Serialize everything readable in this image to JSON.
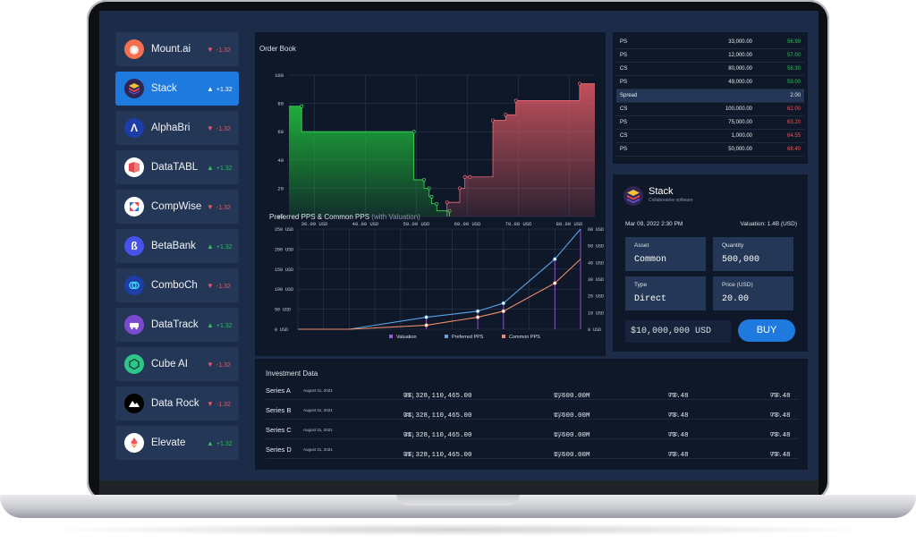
{
  "sidebar": {
    "items": [
      {
        "name": "Mount.ai",
        "direction": "down",
        "change": "-1.32",
        "logo_color": "#f36f4f"
      },
      {
        "name": "Stack",
        "direction": "up",
        "change": "+1.32",
        "logo_color": "#302453",
        "active": true
      },
      {
        "name": "AlphaBri",
        "direction": "down",
        "change": "-1.32",
        "logo_color": "#1d3ea8"
      },
      {
        "name": "DataTABL",
        "direction": "up",
        "change": "+1.32",
        "logo_color": "#ffffff"
      },
      {
        "name": "CompWise",
        "direction": "down",
        "change": "-1.32",
        "logo_color": "#ffffff"
      },
      {
        "name": "BetaBank",
        "direction": "up",
        "change": "+1.32",
        "logo_color": "#4752e8"
      },
      {
        "name": "ComboCh",
        "direction": "down",
        "change": "-1.32",
        "logo_color": "#1d3ea8"
      },
      {
        "name": "DataTrack",
        "direction": "up",
        "change": "+1.32",
        "logo_color": "#7a4bd1"
      },
      {
        "name": "Cube AI",
        "direction": "down",
        "change": "-1.32",
        "logo_color": "#2ec58a"
      },
      {
        "name": "Data Rock",
        "direction": "down",
        "change": "-1.32",
        "logo_color": "#000000"
      },
      {
        "name": "Elevate",
        "direction": "up",
        "change": "+1.32",
        "logo_color": "#ffffff"
      }
    ]
  },
  "order_book": {
    "title": "Order Book",
    "y_ticks": [
      "100",
      "80",
      "60",
      "40",
      "20",
      "00"
    ],
    "x_ticks": [
      "30.00 USD",
      "40.00 USD",
      "50.00 USD",
      "60.00 USD",
      "70.00 USD",
      "80.00 USD"
    ],
    "colors": {
      "bid": "#1fb53a",
      "ask": "#e05a65"
    }
  },
  "pps_chart": {
    "title": "Preferred PPS & Common PPS",
    "subtitle": "(with Valuation)",
    "y_left_ticks": [
      "250 USD",
      "200 USD",
      "150 USD",
      "100 USD",
      "50 USD",
      "0 USD"
    ],
    "y_right_ticks": [
      "60 USD",
      "50 USD",
      "40 USD",
      "30 USD",
      "20 USD",
      "10 USD",
      "0 USD"
    ],
    "legend": [
      "Valuation",
      "Preferred PPS",
      "Common PPS"
    ],
    "colors": {
      "valuation": "#9b59d9",
      "preferred": "#5aa6e8",
      "common": "#f08d6a"
    }
  },
  "chart_data": [
    {
      "type": "area",
      "title": "Order Book",
      "xlim": [
        25,
        85
      ],
      "ylim": [
        0,
        100
      ],
      "series": [
        {
          "x": [
            25,
            27.5,
            27.5,
            49.5,
            49.5,
            51.5,
            51.5,
            52.5,
            52.5,
            53,
            53,
            54,
            54,
            56.5,
            56.5
          ],
          "y": [
            78,
            78,
            60,
            60,
            26,
            26,
            20,
            20,
            14,
            14,
            9,
            9,
            4,
            4,
            0
          ]
        },
        {
          "x": [
            56,
            56,
            58.5,
            58.5,
            59.5,
            59.5,
            60.5,
            60.5,
            65,
            65,
            67.5,
            67.5,
            69.5,
            69.5,
            82,
            82,
            85
          ],
          "y": [
            0,
            10,
            10,
            20,
            20,
            28,
            28,
            28,
            28,
            68,
            68,
            72,
            72,
            82,
            82,
            94,
            94
          ]
        }
      ]
    },
    {
      "type": "line",
      "title": "Preferred PPS & Common PPS",
      "xlim": [
        0,
        11
      ],
      "ylim": [
        0,
        250
      ],
      "series": [
        {
          "name": "Preferred PPS",
          "x": [
            0,
            2,
            5,
            7,
            8,
            10,
            11
          ],
          "y": [
            0,
            0,
            30,
            45,
            65,
            175,
            250
          ]
        },
        {
          "name": "Common PPS",
          "x": [
            0,
            2,
            5,
            7,
            8,
            10,
            11
          ],
          "y": [
            0,
            0,
            10,
            30,
            45,
            115,
            175
          ]
        }
      ],
      "valuation_markers_x": [
        5,
        7,
        8,
        10,
        11
      ]
    }
  ],
  "book_list": {
    "rows_top": [
      {
        "type": "PS",
        "amount": "33,000.00",
        "price": "56.99"
      },
      {
        "type": "PS",
        "amount": "12,000.00",
        "price": "57.00"
      },
      {
        "type": "CS",
        "amount": "80,000.00",
        "price": "58.30"
      },
      {
        "type": "PS",
        "amount": "49,000.00",
        "price": "59.00"
      }
    ],
    "spread": {
      "label": "Spread",
      "value": "2.00"
    },
    "rows_bottom": [
      {
        "type": "CS",
        "amount": "100,000.00",
        "price": "62.00"
      },
      {
        "type": "PS",
        "amount": "75,000.00",
        "price": "63.20"
      },
      {
        "type": "CS",
        "amount": "1,000.00",
        "price": "64.55"
      },
      {
        "type": "PS",
        "amount": "50,000.00",
        "price": "68.40"
      }
    ]
  },
  "detail": {
    "name": "Stack",
    "tagline": "Collaborative software",
    "date": "Mar 09, 2022 2:30 PM",
    "valuation": "Valuation: 1.4B (USD)",
    "asset_label": "Asset",
    "asset_value": "Common",
    "quantity_label": "Quantity",
    "quantity_value": "500,000",
    "type_label": "Type",
    "type_value": "Direct",
    "price_label": "Price (USD)",
    "price_value": "20.00",
    "amount": "$10,000,000 USD",
    "buy_label": "BUY"
  },
  "investment": {
    "title": "Investment Data",
    "unit": "USD",
    "rows": [
      {
        "series": "Series A",
        "date": "August 31, 2021",
        "total": "31,328,110,465.00",
        "valuation": "1,600.00M",
        "pps1": "73.48",
        "pps2": "73.48"
      },
      {
        "series": "Series B",
        "date": "August 31, 2021",
        "total": "31,328,110,465.00",
        "valuation": "1,600.00M",
        "pps1": "73.48",
        "pps2": "73.48"
      },
      {
        "series": "Series C",
        "date": "August 31, 2021",
        "total": "31,328,110,465.00",
        "valuation": "1,600.00M",
        "pps1": "73.48",
        "pps2": "73.48"
      },
      {
        "series": "Series D",
        "date": "August 31, 2021",
        "total": "31,328,110,465.00",
        "valuation": "1,600.00M",
        "pps1": "73.48",
        "pps2": "73.48"
      }
    ]
  }
}
